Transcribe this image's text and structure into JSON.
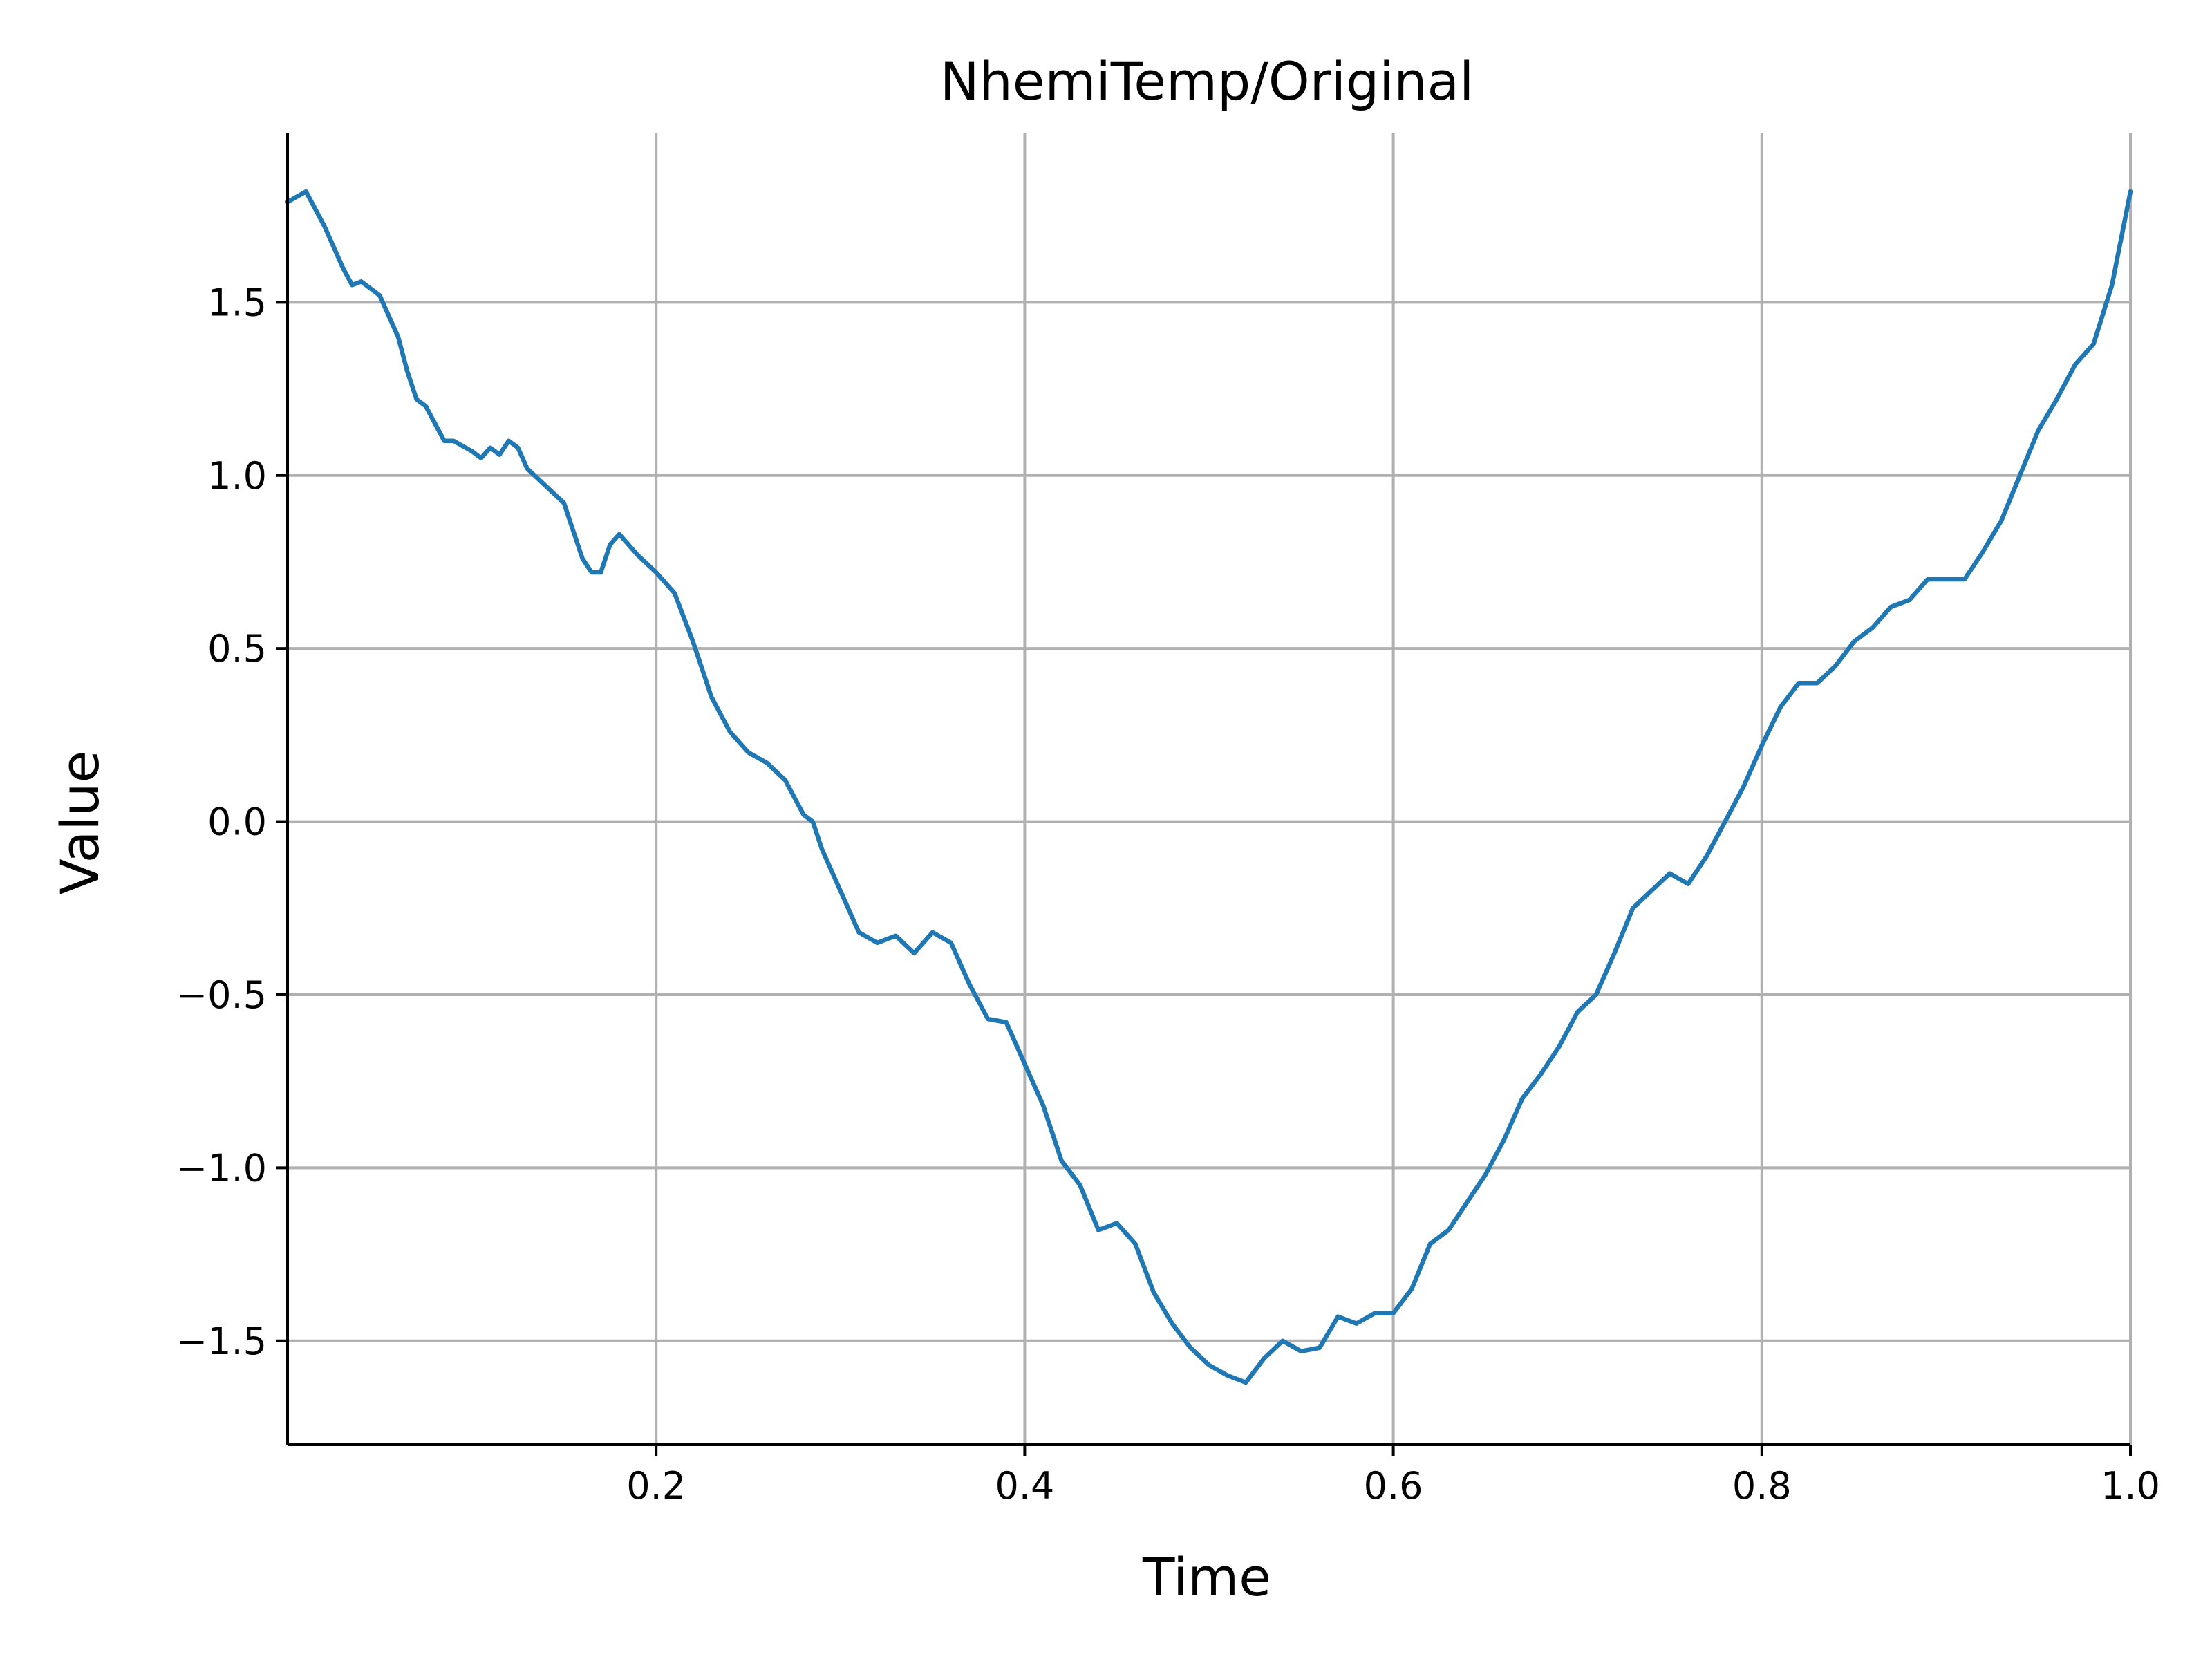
{
  "chart_data": {
    "type": "line",
    "title": "NhemiTemp/Original",
    "xlabel": "Time",
    "ylabel": "Value",
    "xlim": [
      0.0,
      1.0
    ],
    "ylim": [
      -1.8,
      1.99
    ],
    "grid": true,
    "x_ticks": [
      {
        "value": 0.2,
        "label": "0.2"
      },
      {
        "value": 0.4,
        "label": "0.4"
      },
      {
        "value": 0.6,
        "label": "0.6"
      },
      {
        "value": 0.8,
        "label": "0.8"
      },
      {
        "value": 1.0,
        "label": "1.0"
      }
    ],
    "y_ticks": [
      {
        "value": 1.5,
        "label": "1.5"
      },
      {
        "value": 1.0,
        "label": "1.0"
      },
      {
        "value": 0.5,
        "label": "0.5"
      },
      {
        "value": 0.0,
        "label": "0.0"
      },
      {
        "value": -0.5,
        "label": "−0.5"
      },
      {
        "value": -1.0,
        "label": "−1.0"
      },
      {
        "value": -1.5,
        "label": "−1.5"
      }
    ],
    "series": [
      {
        "color": "#1f77b4",
        "x": [
          0.0,
          0.01,
          0.02,
          0.03,
          0.035,
          0.04,
          0.05,
          0.06,
          0.065,
          0.07,
          0.075,
          0.08,
          0.085,
          0.09,
          0.1,
          0.105,
          0.11,
          0.115,
          0.12,
          0.125,
          0.13,
          0.14,
          0.15,
          0.155,
          0.16,
          0.165,
          0.17,
          0.175,
          0.18,
          0.19,
          0.2,
          0.21,
          0.22,
          0.23,
          0.24,
          0.25,
          0.26,
          0.27,
          0.28,
          0.285,
          0.29,
          0.3,
          0.31,
          0.32,
          0.33,
          0.34,
          0.35,
          0.36,
          0.37,
          0.38,
          0.39,
          0.4,
          0.41,
          0.42,
          0.43,
          0.44,
          0.45,
          0.46,
          0.47,
          0.48,
          0.49,
          0.5,
          0.51,
          0.52,
          0.53,
          0.54,
          0.55,
          0.56,
          0.57,
          0.58,
          0.59,
          0.6,
          0.61,
          0.62,
          0.63,
          0.64,
          0.65,
          0.66,
          0.67,
          0.68,
          0.69,
          0.7,
          0.71,
          0.72,
          0.73,
          0.74,
          0.75,
          0.76,
          0.77,
          0.78,
          0.79,
          0.8,
          0.81,
          0.82,
          0.83,
          0.84,
          0.85,
          0.86,
          0.87,
          0.88,
          0.89,
          0.9,
          0.91,
          0.92,
          0.93,
          0.94,
          0.95,
          0.96,
          0.97,
          0.98,
          0.99,
          1.0
        ],
        "y": [
          1.79,
          1.82,
          1.72,
          1.6,
          1.55,
          1.56,
          1.52,
          1.4,
          1.3,
          1.22,
          1.2,
          1.15,
          1.1,
          1.1,
          1.07,
          1.05,
          1.08,
          1.06,
          1.1,
          1.08,
          1.02,
          0.97,
          0.92,
          0.84,
          0.76,
          0.72,
          0.72,
          0.8,
          0.83,
          0.77,
          0.72,
          0.66,
          0.52,
          0.36,
          0.26,
          0.2,
          0.17,
          0.12,
          0.02,
          0.0,
          -0.08,
          -0.2,
          -0.32,
          -0.35,
          -0.33,
          -0.38,
          -0.32,
          -0.35,
          -0.47,
          -0.57,
          -0.58,
          -0.7,
          -0.82,
          -0.98,
          -1.05,
          -1.18,
          -1.16,
          -1.22,
          -1.36,
          -1.45,
          -1.52,
          -1.57,
          -1.6,
          -1.62,
          -1.55,
          -1.5,
          -1.53,
          -1.52,
          -1.43,
          -1.45,
          -1.42,
          -1.42,
          -1.35,
          -1.22,
          -1.18,
          -1.1,
          -1.02,
          -0.92,
          -0.8,
          -0.73,
          -0.65,
          -0.55,
          -0.5,
          -0.38,
          -0.25,
          -0.2,
          -0.15,
          -0.18,
          -0.1,
          0.0,
          0.1,
          0.22,
          0.33,
          0.4,
          0.4,
          0.45,
          0.52,
          0.56,
          0.62,
          0.64,
          0.7,
          0.7,
          0.7,
          0.78,
          0.87,
          1.0,
          1.13,
          1.22,
          1.32,
          1.38,
          1.55,
          1.82
        ]
      }
    ]
  }
}
